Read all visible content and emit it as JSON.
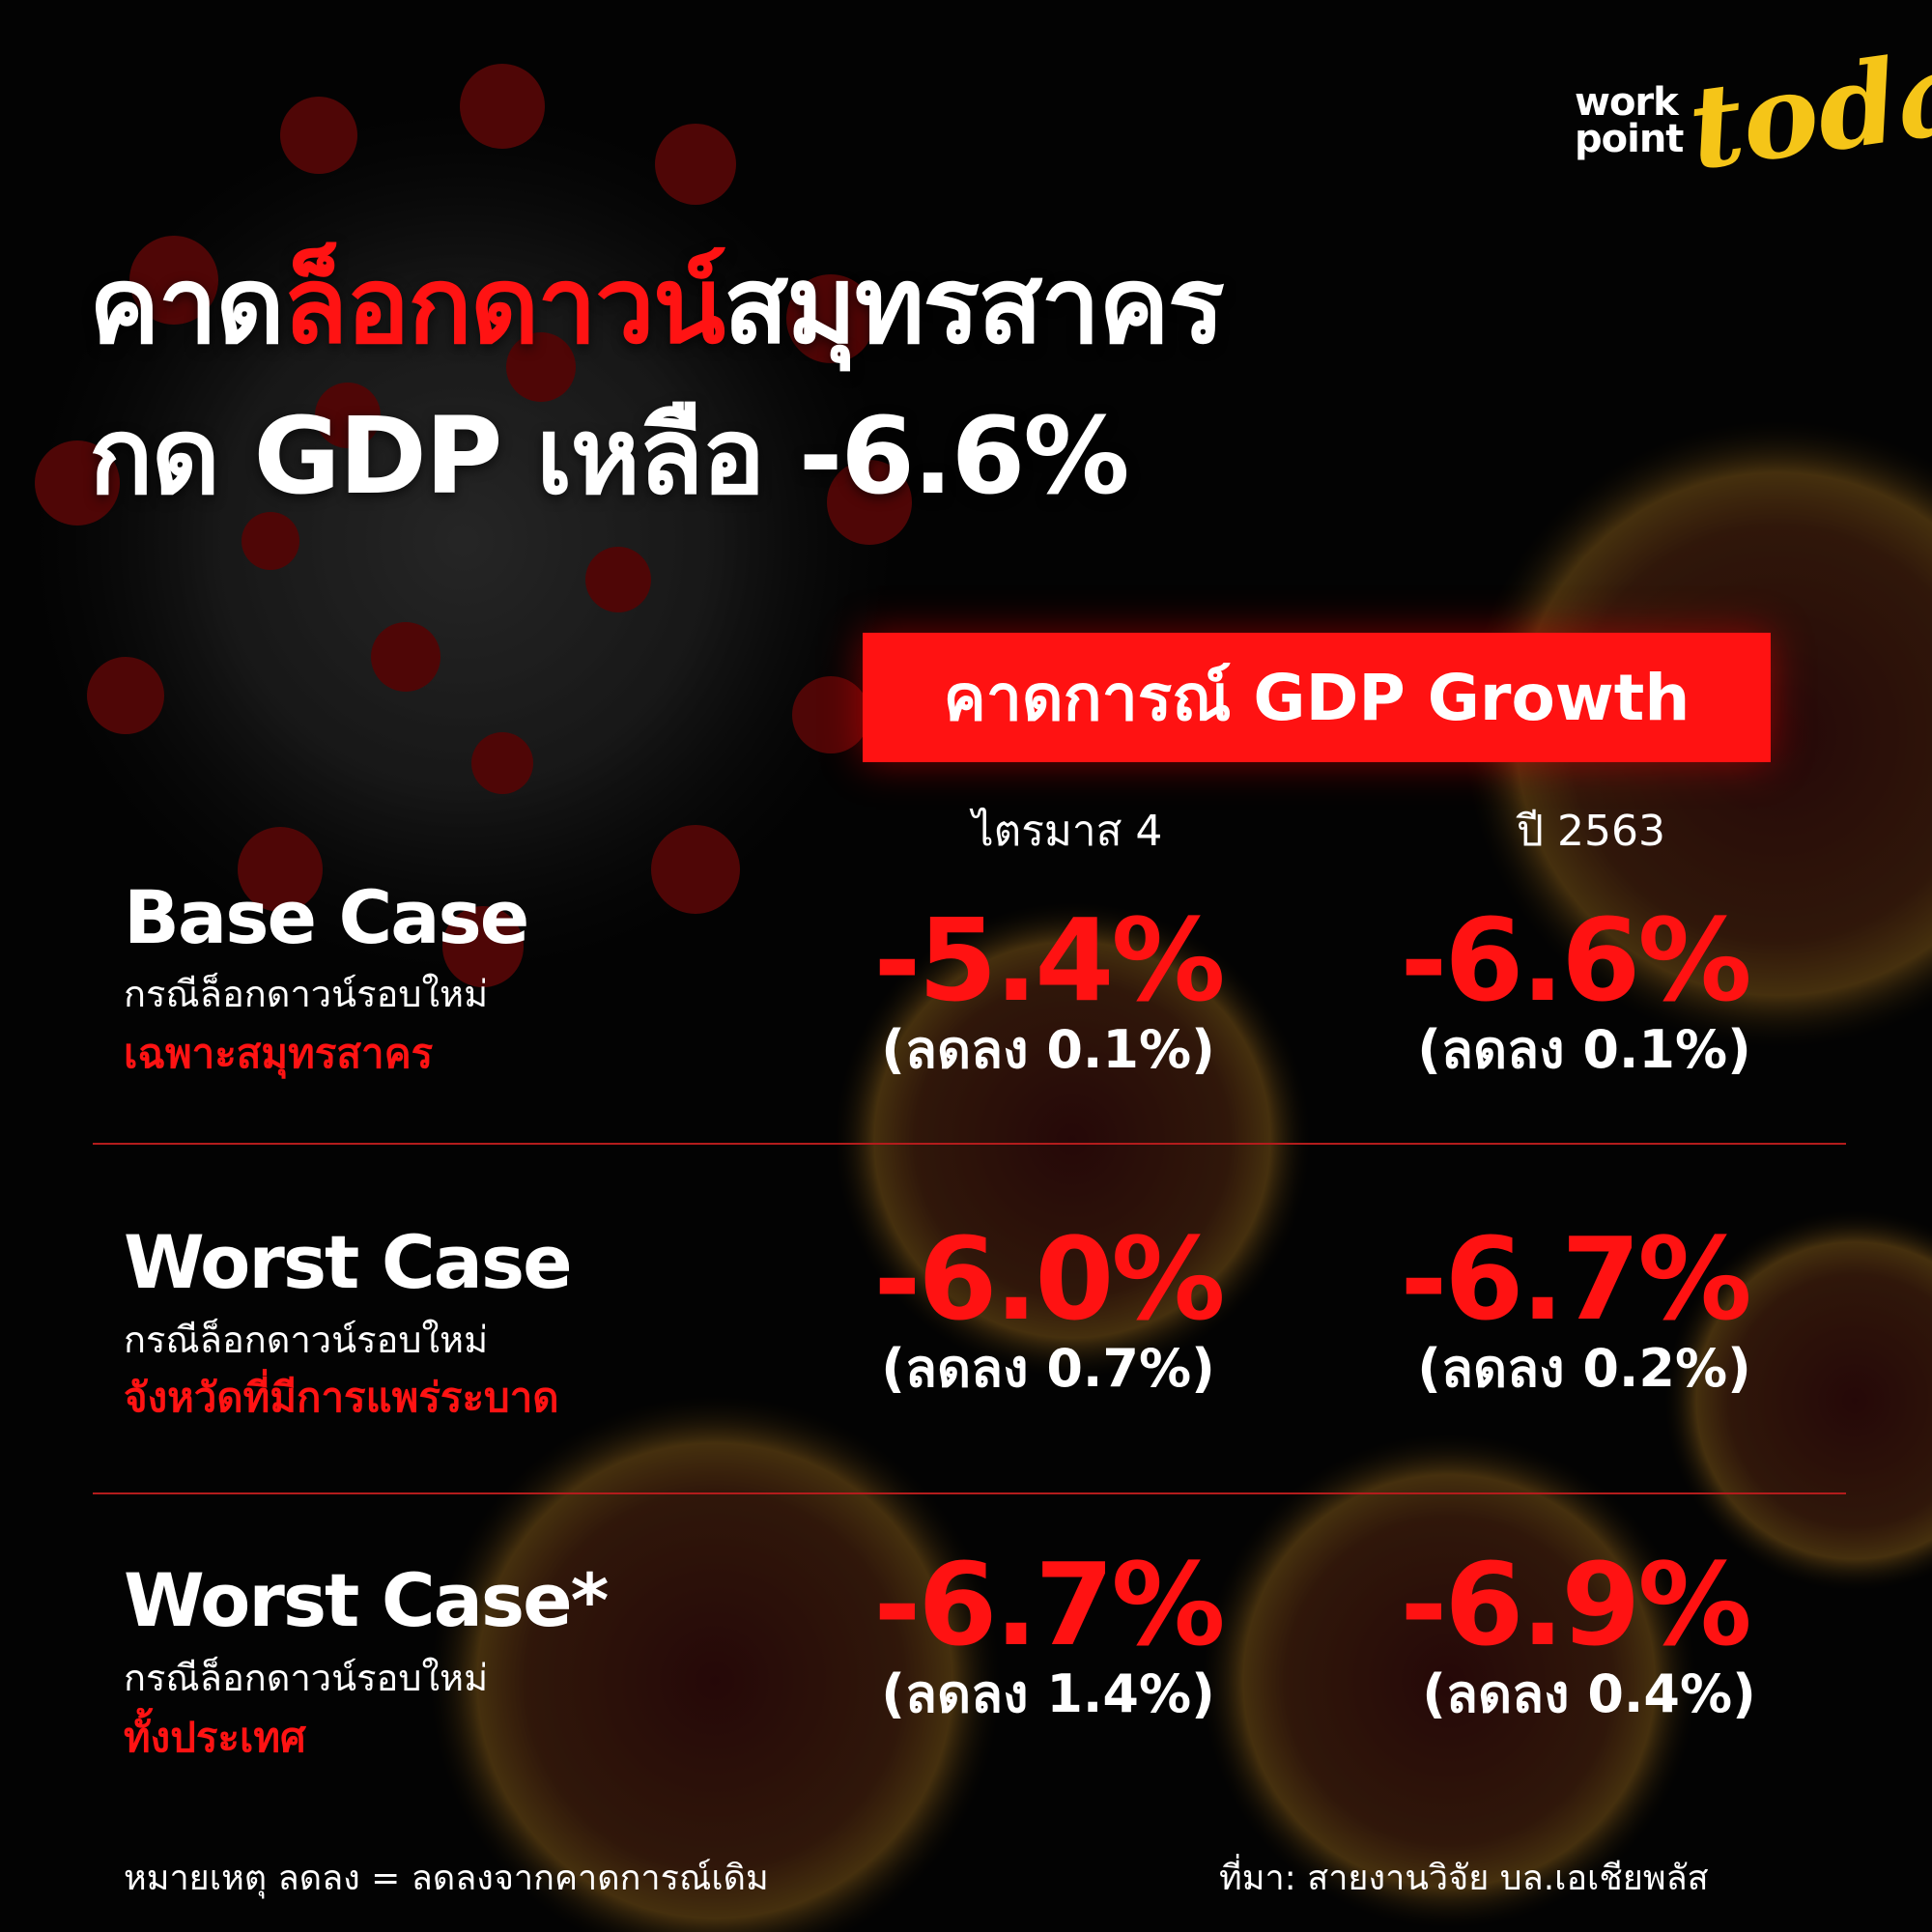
{
  "logo": {
    "line1": "work",
    "line2": "point",
    "script": "today"
  },
  "title": {
    "line1_a": "คาด",
    "line1_b": "ล็อกดาวน์",
    "line1_c": "สมุทรสาคร",
    "line2": "กด GDP เหลือ -6.6%"
  },
  "forecast_label": "คาดการณ์ GDP Growth",
  "columns": [
    "ไตรมาส 4",
    "ปี 2563"
  ],
  "cases": [
    {
      "name": "Base Case",
      "sub": "กรณีล็อกดาวน์รอบใหม่",
      "highlight": "เฉพาะสมุทรสาคร",
      "q4": "-5.4%",
      "q4_change": "(ลดลง 0.1%)",
      "year": "-6.6%",
      "year_change": "(ลดลง 0.1%)"
    },
    {
      "name": "Worst Case",
      "sub": "กรณีล็อกดาวน์รอบใหม่",
      "highlight": "จังหวัดที่มีการแพร่ระบาด",
      "q4": "-6.0%",
      "q4_change": "(ลดลง 0.7%)",
      "year": "-6.7%",
      "year_change": "(ลดลง 0.2%)"
    },
    {
      "name": "Worst Case*",
      "sub": "กรณีล็อกดาวน์รอบใหม่",
      "highlight": "ทั้งประเทศ",
      "q4": "-6.7%",
      "q4_change": "(ลดลง 1.4%)",
      "year": "-6.9%",
      "year_change": "(ลดลง 0.4%)"
    }
  ],
  "footer": {
    "note": "หมายเหตุ ลดลง = ลดลงจากคาดการณ์เดิม",
    "source": "ที่มา: สายงานวิจัย บล.เอเชียพลัส"
  },
  "colors": {
    "accent": "#ff1212",
    "text": "#ffffff",
    "logo": "#f5c518",
    "background": "#050505"
  }
}
